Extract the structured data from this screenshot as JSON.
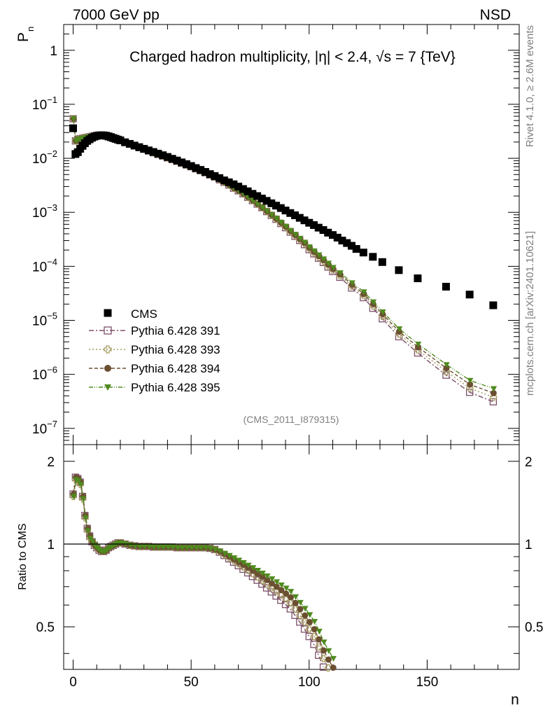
{
  "header": {
    "left": "7000 GeV pp",
    "right": "NSD"
  },
  "side_text": {
    "rivet": "Rivet 4.1.0, ≥ 2.6M events",
    "mcplots": "mcplots.cern.ch [arXiv:2401.10621]"
  },
  "chart_data": {
    "type": "scatter",
    "title": "Charged hadron multiplicity, |η| < 2.4, √s = 7 {TeV}",
    "analysis_tag": "(CMS_2011_I879315)",
    "xlabel": "n",
    "ylabel": "P",
    "ylabel_sub": "n",
    "ratio_ylabel": "Ratio to CMS",
    "xlim": [
      -4,
      189
    ],
    "ylim": [
      5e-08,
      3
    ],
    "ratio_ylim": [
      0.35,
      2.3
    ],
    "xticks": [
      "0",
      "50",
      "100",
      "150"
    ],
    "xtick_values": [
      0,
      50,
      100,
      150
    ],
    "ytick_labels": [
      "1",
      "10^-1",
      "10^-2",
      "10^-3",
      "10^-4",
      "10^-5",
      "10^-6",
      "10^-7"
    ],
    "ytick_values": [
      1,
      0.1,
      0.01,
      0.001,
      0.0001,
      1e-05,
      1e-06,
      1e-07
    ],
    "ratio_ytick_labels": [
      "2",
      "1",
      "0.5"
    ],
    "ratio_ytick_values": [
      2,
      1,
      0.5
    ],
    "cms": {
      "name": "CMS",
      "color": "#000000",
      "x": [
        0,
        1,
        2,
        3,
        4,
        5,
        6,
        7,
        8,
        9,
        10,
        11,
        12,
        13,
        14,
        15,
        16,
        17,
        18,
        19,
        20,
        22,
        24,
        26,
        28,
        30,
        32,
        34,
        36,
        38,
        40,
        42,
        44,
        46,
        48,
        50,
        52,
        54,
        56,
        58,
        60,
        62,
        64,
        66,
        68,
        70,
        72,
        74,
        76,
        78,
        80,
        82,
        84,
        86,
        88,
        90,
        92,
        94,
        96,
        98,
        100,
        102,
        104,
        106,
        108,
        110,
        112,
        114,
        116,
        118,
        120,
        123,
        127,
        131,
        138,
        146,
        158,
        168,
        178
      ],
      "y": [
        0.036,
        0.012,
        0.013,
        0.015,
        0.017,
        0.019,
        0.021,
        0.0225,
        0.024,
        0.0252,
        0.026,
        0.0265,
        0.0267,
        0.0266,
        0.0262,
        0.0255,
        0.0247,
        0.0238,
        0.023,
        0.0222,
        0.0215,
        0.0198,
        0.0185,
        0.0172,
        0.0161,
        0.015,
        0.014,
        0.0131,
        0.0122,
        0.0114,
        0.0106,
        0.0098,
        0.0091,
        0.0084,
        0.0078,
        0.0072,
        0.0066,
        0.0061,
        0.0056,
        0.0051,
        0.0047,
        0.0043,
        0.0039,
        0.0036,
        0.0033,
        0.003,
        0.0027,
        0.00245,
        0.0022,
        0.002,
        0.0018,
        0.00163,
        0.00147,
        0.00133,
        0.0012,
        0.00108,
        0.00097,
        0.00088,
        0.00079,
        0.00071,
        0.00064,
        0.00058,
        0.00052,
        0.00047,
        0.00042,
        0.00038,
        0.00034,
        0.0003,
        0.00027,
        0.00024,
        0.00021,
        0.00018,
        0.00015,
        0.00012,
        8.5e-05,
        6e-05,
        4.2e-05,
        3e-05,
        1.9e-05
      ]
    },
    "series": [
      {
        "name": "Pythia 6.428 391",
        "color": "#7b4f68",
        "marker": "square-open",
        "dash": "7,3,2,3",
        "scale": 0.86,
        "offset": 0.0
      },
      {
        "name": "Pythia 6.428 393",
        "color": "#a49a5e",
        "marker": "cross-open",
        "dash": "2,3",
        "scale": 0.93,
        "offset": 0.5
      },
      {
        "name": "Pythia 6.428 394",
        "color": "#6b4f31",
        "marker": "circle",
        "dash": "5,3",
        "scale": 1.0,
        "offset": 1.0
      },
      {
        "name": "Pythia 6.428 395",
        "color": "#4f8a1e",
        "marker": "triangle-down",
        "dash": "6,2,1,2,1,2",
        "scale": 1.08,
        "offset": 1.5
      }
    ],
    "mc_points": {
      "x": [
        0,
        1,
        2,
        3,
        4,
        5,
        6,
        7,
        8,
        9,
        10,
        11,
        12,
        13,
        14,
        15,
        16,
        17,
        18,
        19,
        20,
        22,
        24,
        26,
        28,
        30,
        32,
        34,
        36,
        38,
        40,
        42,
        44,
        46,
        48,
        50,
        52,
        54,
        56,
        58,
        60,
        62,
        64,
        66,
        68,
        70,
        72,
        74,
        76,
        78,
        80,
        82,
        84,
        86,
        88,
        90,
        92,
        94,
        96,
        98,
        100,
        102,
        104,
        106,
        108,
        110,
        113,
        118,
        123,
        127,
        131,
        138,
        146,
        158,
        168,
        178
      ],
      "y": [
        0.054,
        0.021,
        0.0225,
        0.023,
        0.0235,
        0.024,
        0.0245,
        0.025,
        0.0255,
        0.026,
        0.0265,
        0.0268,
        0.0268,
        0.0264,
        0.0258,
        0.025,
        0.0242,
        0.0234,
        0.0227,
        0.022,
        0.0213,
        0.0197,
        0.0183,
        0.017,
        0.0158,
        0.0147,
        0.0137,
        0.0127,
        0.0118,
        0.011,
        0.0102,
        0.0095,
        0.0088,
        0.0081,
        0.0075,
        0.007,
        0.0064,
        0.0059,
        0.0054,
        0.0049,
        0.0045,
        0.004,
        0.0036,
        0.0032,
        0.0028,
        0.0025,
        0.0022,
        0.0019,
        0.00165,
        0.00142,
        0.00122,
        0.00104,
        0.00089,
        0.00076,
        0.00064,
        0.00054,
        0.00045,
        0.00038,
        0.00032,
        0.00027,
        0.00022,
        0.000185,
        0.000155,
        0.00013,
        0.000108,
        9e-05,
        7.1e-05,
        4.6e-05,
        3.1e-05,
        2e-05,
        1.3e-05,
        6.2e-06,
        3.2e-06,
        1.3e-06,
        6.5e-07,
        4.5e-07
      ]
    },
    "ratio_points": {
      "x": [
        0,
        1,
        2,
        3,
        4,
        5,
        6,
        7,
        8,
        9,
        10,
        11,
        12,
        13,
        14,
        15,
        16,
        17,
        18,
        19,
        20,
        22,
        24,
        26,
        28,
        30,
        32,
        34,
        36,
        38,
        40,
        42,
        44,
        46,
        48,
        50,
        52,
        54,
        56,
        58,
        60,
        62,
        64,
        66,
        68,
        70,
        72,
        74,
        76,
        78,
        80,
        82,
        84,
        86,
        88,
        90,
        92,
        94,
        96,
        98,
        100,
        102,
        104,
        106,
        108,
        110
      ],
      "y": [
        1.52,
        1.75,
        1.73,
        1.68,
        1.49,
        1.27,
        1.14,
        1.07,
        1.02,
        0.99,
        0.97,
        0.95,
        0.94,
        0.94,
        0.95,
        0.97,
        0.98,
        0.99,
        1.0,
        1.01,
        1.01,
        1.0,
        0.99,
        0.985,
        0.98,
        0.98,
        0.98,
        0.975,
        0.975,
        0.975,
        0.975,
        0.975,
        0.97,
        0.97,
        0.97,
        0.97,
        0.97,
        0.97,
        0.97,
        0.965,
        0.955,
        0.94,
        0.92,
        0.9,
        0.88,
        0.86,
        0.84,
        0.82,
        0.8,
        0.78,
        0.76,
        0.74,
        0.72,
        0.7,
        0.68,
        0.66,
        0.64,
        0.61,
        0.58,
        0.55,
        0.52,
        0.49,
        0.45,
        0.41,
        0.38,
        0.355
      ]
    }
  }
}
